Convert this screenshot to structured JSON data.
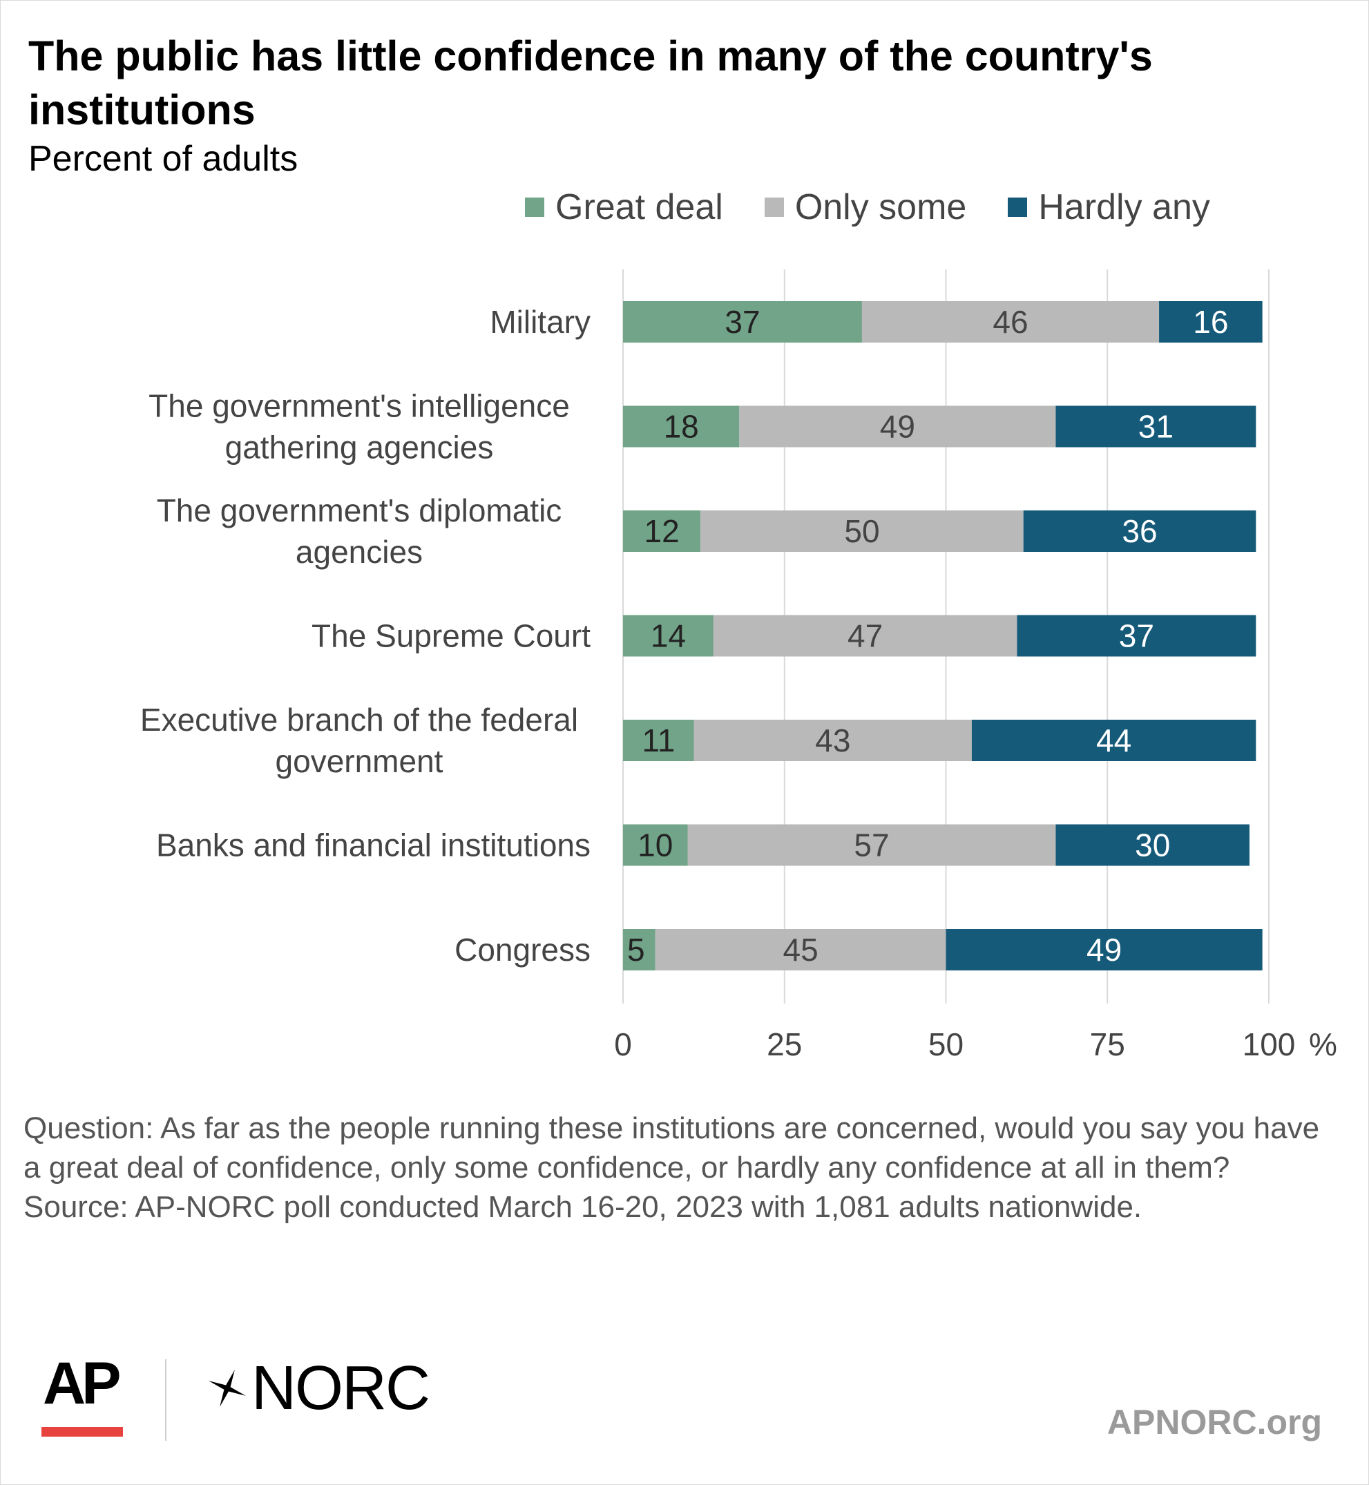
{
  "title": "The public has little confidence in many of the country's institutions",
  "subtitle": "Percent of adults",
  "legend": [
    {
      "label": "Great deal",
      "color": "#72a489"
    },
    {
      "label": "Only some",
      "color": "#b9b9b9"
    },
    {
      "label": "Hardly any",
      "color": "#165a7a"
    }
  ],
  "chart_data": {
    "type": "bar",
    "orientation": "horizontal",
    "stacked": true,
    "categories": [
      [
        "Military"
      ],
      [
        "The government's intelligence",
        "gathering agencies"
      ],
      [
        "The government's diplomatic",
        "agencies"
      ],
      [
        "The Supreme Court"
      ],
      [
        "Executive branch of the federal",
        "government"
      ],
      [
        "Banks and financial institutions"
      ],
      [
        "Congress"
      ]
    ],
    "series": [
      {
        "name": "Great deal",
        "values": [
          37,
          18,
          12,
          14,
          11,
          10,
          5
        ]
      },
      {
        "name": "Only some",
        "values": [
          46,
          49,
          50,
          47,
          43,
          57,
          45
        ]
      },
      {
        "name": "Hardly any",
        "values": [
          16,
          31,
          36,
          37,
          44,
          30,
          49
        ]
      }
    ],
    "label_colors": [
      "#222222",
      "#444444",
      "#ffffff"
    ],
    "xlim": [
      0,
      100
    ],
    "xticks": [
      "0",
      "25",
      "50",
      "75",
      "100"
    ],
    "x_unit": "%",
    "grid": true,
    "legend_position": "top"
  },
  "footnote": {
    "question": "Question: As far as the people running these institutions are concerned, would you say you have a great deal of confidence, only some confidence, or hardly any confidence at all in them?",
    "source": "Source: AP-NORC poll conducted March 16-20, 2023 with 1,081 adults nationwide."
  },
  "logos": {
    "ap": "AP",
    "norc": "NORC",
    "norc_icon": "star-icon"
  },
  "site": "APNORC.org"
}
